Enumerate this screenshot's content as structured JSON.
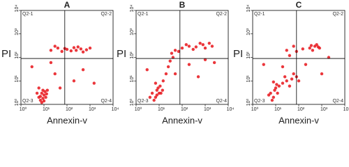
{
  "chart_data": [
    {
      "type": "scatter",
      "title": "A",
      "x_label": "Annexin-v",
      "y_label": "PI",
      "log_x": true,
      "log_y": true,
      "xlim": [
        1,
        10000
      ],
      "ylim": [
        1,
        10000
      ],
      "xticks": [
        {
          "value": 1,
          "label": "10⁰"
        },
        {
          "value": 10,
          "label": "10¹"
        },
        {
          "value": 100,
          "label": "10²"
        },
        {
          "value": 1000,
          "label": "10³"
        },
        {
          "value": 10000,
          "label": "10⁴"
        }
      ],
      "yticks": [
        {
          "value": 1,
          "label": "10⁰"
        },
        {
          "value": 10,
          "label": "10¹"
        },
        {
          "value": 100,
          "label": "10²"
        },
        {
          "value": 1000,
          "label": "10³"
        },
        {
          "value": 10000,
          "label": "10⁴"
        }
      ],
      "quadrant_x": 80,
      "quadrant_y": 90,
      "quadrant_labels": [
        "Q2-1",
        "Q2-2",
        "Q2-3",
        "Q2-4"
      ],
      "series": [
        {
          "color": "#e8141a",
          "x": [
            6,
            8,
            10,
            7,
            9,
            12,
            5,
            8,
            11,
            6,
            9,
            13,
            7,
            10,
            14,
            20,
            40,
            60,
            100,
            200,
            400,
            700,
            30,
            150,
            300,
            500,
            80,
            1000,
            250,
            30,
            200,
            50,
            3,
            500,
            20,
            1500
          ],
          "values": [
            2,
            3,
            2.5,
            1.5,
            4,
            2,
            3,
            1.2,
            3.5,
            5,
            1.8,
            2.8,
            2.2,
            1.4,
            4,
            200,
            250,
            180,
            220,
            260,
            230,
            210,
            300,
            190,
            280,
            170,
            240,
            250,
            200,
            20,
            10,
            5,
            40,
            30,
            60,
            8
          ]
        }
      ]
    },
    {
      "type": "scatter",
      "title": "B",
      "x_label": "Annexin-v",
      "y_label": "PI",
      "log_x": true,
      "log_y": true,
      "xlim": [
        1,
        10000
      ],
      "ylim": [
        1,
        10000
      ],
      "xticks": [
        {
          "value": 1,
          "label": "10⁰"
        },
        {
          "value": 10,
          "label": "10¹"
        },
        {
          "value": 100,
          "label": "10²"
        },
        {
          "value": 1000,
          "label": "10³"
        },
        {
          "value": 10000,
          "label": "10⁴"
        }
      ],
      "yticks": [
        {
          "value": 1,
          "label": "10⁰"
        },
        {
          "value": 10,
          "label": "10¹"
        },
        {
          "value": 100,
          "label": "10²"
        },
        {
          "value": 1000,
          "label": "10³"
        },
        {
          "value": 10000,
          "label": "10⁴"
        }
      ],
      "quadrant_x": 80,
      "quadrant_y": 90,
      "quadrant_labels": [
        "Q2-1",
        "Q2-2",
        "Q2-3",
        "Q2-4"
      ],
      "series": [
        {
          "color": "#e8141a",
          "x": [
            5,
            7,
            8,
            10,
            6,
            9,
            12,
            4,
            11,
            7,
            14,
            8,
            15,
            20,
            25,
            30,
            40,
            35,
            50,
            100,
            200,
            400,
            800,
            1500,
            70,
            300,
            600,
            150,
            2000,
            1000,
            50,
            200,
            500,
            3,
            1000,
            2500
          ],
          "values": [
            3,
            2,
            4,
            3,
            1.5,
            5,
            3,
            2,
            6,
            8,
            4,
            2.5,
            10,
            20,
            40,
            70,
            100,
            150,
            200,
            250,
            300,
            280,
            350,
            400,
            180,
            220,
            400,
            350,
            300,
            250,
            20,
            50,
            15,
            30,
            80,
            60
          ]
        }
      ]
    },
    {
      "type": "scatter",
      "title": "C",
      "x_label": "Annexin-v",
      "y_label": "PI",
      "log_x": true,
      "log_y": true,
      "xlim": [
        1,
        10000
      ],
      "ylim": [
        1,
        10000
      ],
      "xticks": [
        {
          "value": 1,
          "label": "10⁰"
        },
        {
          "value": 10,
          "label": "10¹"
        },
        {
          "value": 100,
          "label": "10²"
        },
        {
          "value": 1000,
          "label": "10³"
        },
        {
          "value": 10000,
          "label": "10⁴"
        }
      ],
      "yticks": [
        {
          "value": 1,
          "label": "10⁰"
        },
        {
          "value": 10,
          "label": "10¹"
        },
        {
          "value": 100,
          "label": "10²"
        },
        {
          "value": 1000,
          "label": "10³"
        },
        {
          "value": 10000,
          "label": "10⁴"
        }
      ],
      "quadrant_x": 80,
      "quadrant_y": 90,
      "quadrant_labels": [
        "Q2-1",
        "Q2-2",
        "Q2-3",
        "Q2-4"
      ],
      "series": [
        {
          "color": "#e8141a",
          "x": [
            6,
            8,
            9,
            10,
            7,
            12,
            5,
            11,
            14,
            8,
            20,
            30,
            50,
            80,
            40,
            60,
            100,
            25,
            300,
            500,
            400,
            700,
            600,
            350,
            800,
            20,
            40,
            80,
            150,
            60,
            30,
            1000,
            200,
            3,
            2000
          ],
          "values": [
            3,
            2,
            4,
            5,
            1.5,
            3,
            2.5,
            7,
            6,
            9,
            8,
            10,
            12,
            15,
            6,
            20,
            10,
            15,
            250,
            300,
            200,
            280,
            350,
            320,
            250,
            40,
            120,
            180,
            230,
            300,
            200,
            20,
            50,
            50,
            100
          ]
        }
      ]
    }
  ]
}
